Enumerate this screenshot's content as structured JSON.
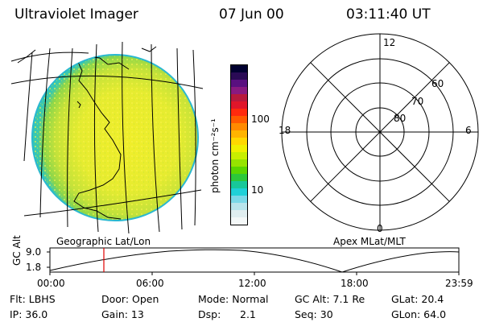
{
  "header": {
    "title": "Ultraviolet Imager",
    "date": "07 Jun 00",
    "time": "03:11:40 UT"
  },
  "colorbar": {
    "unit_label": "photon cm⁻²s⁻¹",
    "tick_100": "100",
    "tick_10": "10",
    "colors": [
      "#000030",
      "#2a0a55",
      "#5a1080",
      "#8a1a80",
      "#b81a3c",
      "#e0162a",
      "#ff2a0e",
      "#ff5a00",
      "#ff8a00",
      "#ffb400",
      "#ffd800",
      "#f0f000",
      "#c8ef00",
      "#96e400",
      "#5ad600",
      "#2cc83a",
      "#18c89a",
      "#20d0d8",
      "#7ad8e8",
      "#b8e4ec",
      "#e0eef0",
      "#f4f8f8"
    ]
  },
  "polar_plot": {
    "label_12": "12",
    "label_18": "18",
    "label_6": "6",
    "label_0": "0",
    "label_60": "60",
    "label_70": "70",
    "label_80": "80"
  },
  "image_labels": {
    "left": "Geographic Lat/Lon",
    "right": "Apex MLat/MLT"
  },
  "altitude_plot": {
    "ylabel": "GC Alt",
    "ytick_top": "9.0",
    "ytick_bottom": "1.8",
    "xticks": [
      "00:00",
      "06:00",
      "12:00",
      "18:00",
      "23:59"
    ]
  },
  "info": {
    "flt": "Flt: LBHS",
    "door": "Door: Open",
    "mode": "Mode: Normal",
    "gc_alt": "GC Alt: 7.1 Re",
    "glat": "GLat: 20.4",
    "ip": "IP: 36.0",
    "gain": "Gain: 13",
    "dsp_label": "Dsp:",
    "dsp_value": "2.1",
    "seq": "Seq: 30",
    "glon": "GLon: 64.0"
  }
}
